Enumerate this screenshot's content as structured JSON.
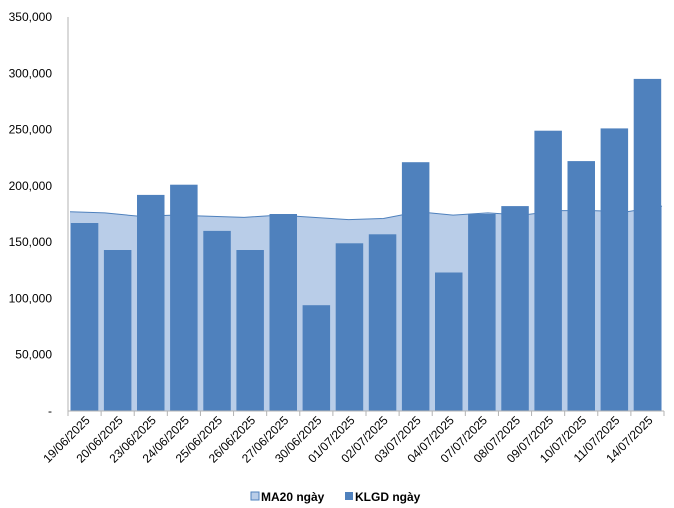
{
  "chart_data": {
    "type": "bar",
    "title": "",
    "xlabel": "",
    "ylabel": "",
    "ylim": [
      0,
      350000
    ],
    "yticks": [
      0,
      50000,
      100000,
      150000,
      200000,
      250000,
      300000,
      350000
    ],
    "ytick_labels": [
      "-",
      "50,000",
      "100,000",
      "150,000",
      "200,000",
      "250,000",
      "300,000",
      "350,000"
    ],
    "categories": [
      "19/06/2025",
      "20/06/2025",
      "23/06/2025",
      "24/06/2025",
      "25/06/2025",
      "26/06/2025",
      "27/06/2025",
      "30/06/2025",
      "01/07/2025",
      "02/07/2025",
      "03/07/2025",
      "04/07/2025",
      "07/07/2025",
      "08/07/2025",
      "09/07/2025",
      "10/07/2025",
      "11/07/2025",
      "14/07/2025"
    ],
    "grid": false,
    "legend_position": "bottom",
    "series": [
      {
        "name": "MA20 ngày",
        "kind": "area",
        "color": "#b9cde8",
        "edge_color": "#4f81bd",
        "values": [
          177000,
          176000,
          173000,
          174000,
          173000,
          172000,
          174000,
          172000,
          170000,
          171000,
          177000,
          174000,
          176000,
          174000,
          178000,
          178000,
          177000,
          182000
        ]
      },
      {
        "name": "KLGD ngày",
        "kind": "bar",
        "color": "#4f81bd",
        "values": [
          167000,
          143000,
          192000,
          201000,
          160000,
          143000,
          175000,
          94000,
          149000,
          157000,
          221000,
          123000,
          175000,
          182000,
          249000,
          222000,
          251000,
          295000
        ]
      }
    ]
  }
}
